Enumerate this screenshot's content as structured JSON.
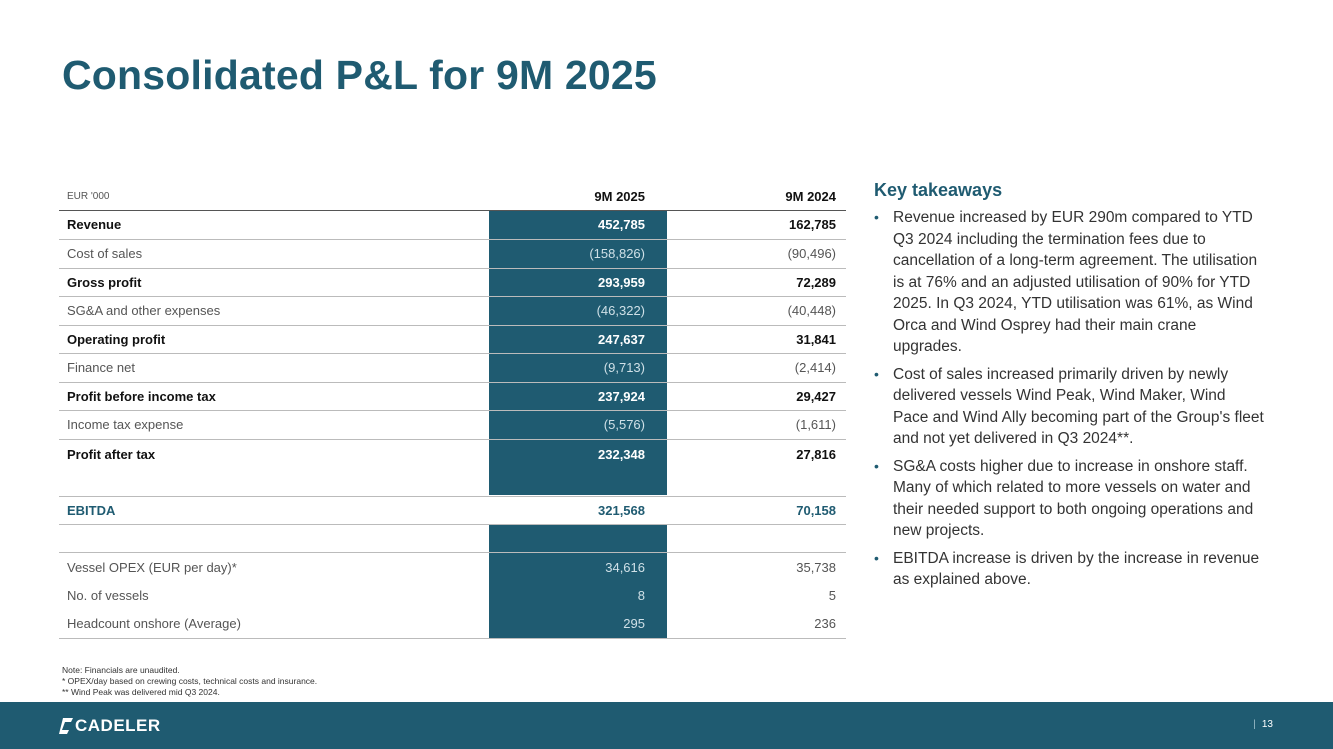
{
  "title": "Consolidated P&L for 9M 2025",
  "table": {
    "unit_label": "EUR '000",
    "col1": "9M 2025",
    "col2": "9M 2024",
    "rows": [
      {
        "label": "Revenue",
        "v1": "452,785",
        "v2": "162,785"
      },
      {
        "label": "Cost of sales",
        "v1": "(158,826)",
        "v2": "(90,496)"
      },
      {
        "label": "Gross profit",
        "v1": "293,959",
        "v2": "72,289"
      },
      {
        "label": "SG&A and other expenses",
        "v1": "(46,322)",
        "v2": "(40,448)"
      },
      {
        "label": "Operating profit",
        "v1": "247,637",
        "v2": "31,841"
      },
      {
        "label": "Finance net",
        "v1": "(9,713)",
        "v2": "(2,414)"
      },
      {
        "label": "Profit before income tax",
        "v1": "237,924",
        "v2": "29,427"
      },
      {
        "label": "Income tax expense",
        "v1": "(5,576)",
        "v2": "(1,611)"
      },
      {
        "label": "Profit after tax",
        "v1": "232,348",
        "v2": "27,816"
      }
    ],
    "ebitda": {
      "label": "EBITDA",
      "v1": "321,568",
      "v2": "70,158"
    },
    "kpis": [
      {
        "label": "Vessel OPEX (EUR per day)*",
        "v1": "34,616",
        "v2": "35,738"
      },
      {
        "label": "No. of vessels",
        "v1": "8",
        "v2": "5"
      },
      {
        "label": "Headcount onshore (Average)",
        "v1": "295",
        "v2": "236"
      }
    ]
  },
  "takeaways": {
    "heading": "Key takeaways",
    "items": [
      "Revenue increased by EUR 290m compared to YTD Q3 2024 including the termination fees due to cancellation of a long-term agreement. The utilisation is at 76% and an adjusted utilisation of 90% for YTD 2025. In Q3 2024, YTD utilisation was 61%, as Wind Orca and Wind Osprey had their main crane upgrades.",
      "Cost of sales increased primarily driven by newly delivered vessels Wind Peak, Wind Maker, Wind Pace and Wind Ally becoming part of the Group's fleet and not yet delivered in Q3 2024**.",
      "SG&A costs higher due to increase in onshore staff. Many of which related to more vessels on water and their needed support to both ongoing operations and new projects.",
      "EBITDA increase is driven by the increase in revenue as explained above."
    ]
  },
  "notes": [
    "Note: Financials are unaudited.",
    "* OPEX/day based on crewing costs, technical costs and insurance.",
    "** Wind Peak was delivered mid Q3 2024."
  ],
  "footer": {
    "logo_text": "CADELER",
    "separator": "|",
    "page_number": "13"
  },
  "colors": {
    "brand": "#1f5b71"
  }
}
